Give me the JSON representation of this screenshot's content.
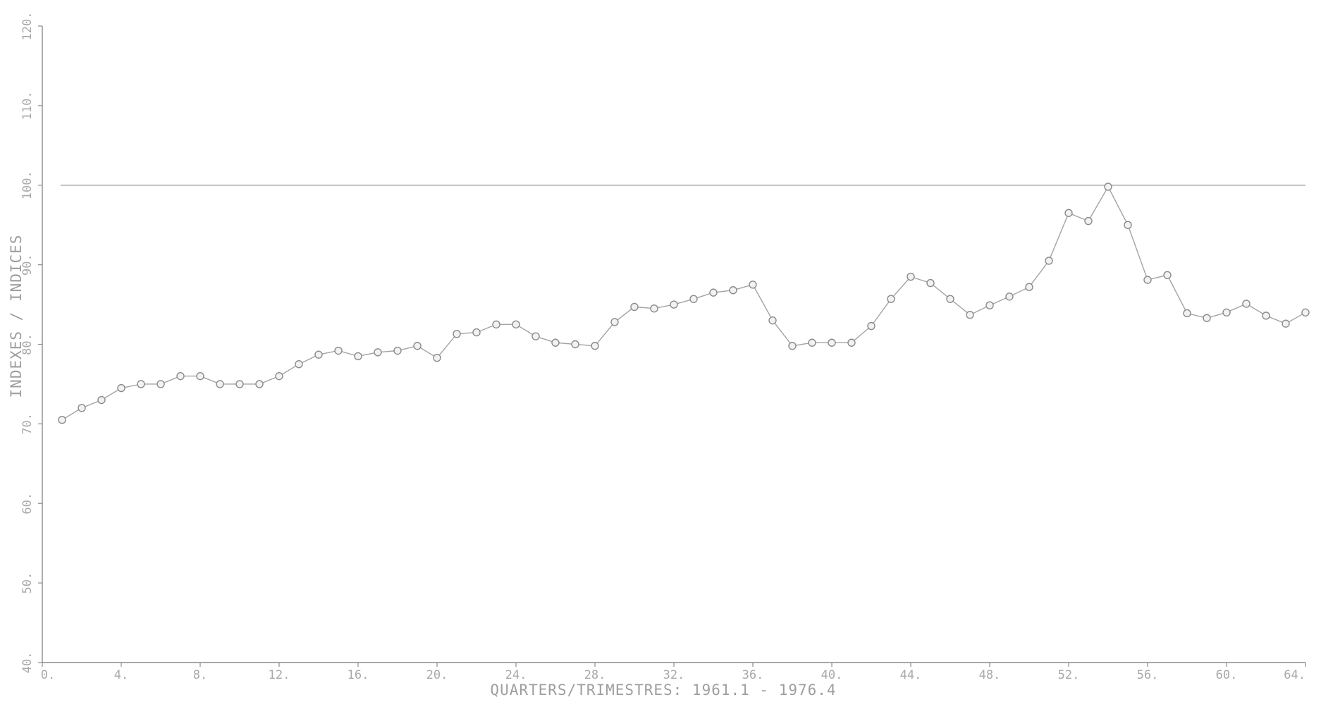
{
  "chart_data": {
    "type": "line",
    "xlabel": "QUARTERS/TRIMESTRES: 1961.1 - 1976.4",
    "ylabel": "INDEXES / INDICES",
    "xlim": [
      0,
      64
    ],
    "ylim": [
      40,
      120
    ],
    "x_ticks": [
      0,
      4,
      8,
      12,
      16,
      20,
      24,
      28,
      32,
      36,
      40,
      44,
      48,
      52,
      56,
      60,
      64
    ],
    "x_tick_labels": [
      "0.",
      "4.",
      "8.",
      "12.",
      "16.",
      "20.",
      "24.",
      "28.",
      "32.",
      "36.",
      "40.",
      "44.",
      "48.",
      "52.",
      "56.",
      "60.",
      "64."
    ],
    "y_ticks": [
      40,
      50,
      60,
      70,
      80,
      90,
      100,
      110,
      120
    ],
    "y_tick_labels": [
      "40.",
      "50.",
      "60.",
      "70.",
      "80.",
      "90.",
      "100.",
      "110.",
      "120."
    ],
    "reference_line": 100,
    "grid": false,
    "series": [
      {
        "x": [
          1,
          2,
          3,
          4,
          5,
          6,
          7,
          8,
          9,
          10,
          11,
          12,
          13,
          14,
          15,
          16,
          17,
          18,
          19,
          20,
          21,
          22,
          23,
          24,
          25,
          26,
          27,
          28,
          29,
          30,
          31,
          32,
          33,
          34,
          35,
          36,
          37,
          38,
          39,
          40,
          41,
          42,
          43,
          44,
          45,
          46,
          47,
          48,
          49,
          50,
          51,
          52,
          53,
          54,
          55,
          56,
          57,
          58,
          59,
          60,
          61,
          62,
          63,
          64
        ],
        "values": [
          70.5,
          72.0,
          73.0,
          74.5,
          75.0,
          75.0,
          76.0,
          76.0,
          75.0,
          75.0,
          75.0,
          76.0,
          77.5,
          78.7,
          79.2,
          78.5,
          79.0,
          79.2,
          79.8,
          78.3,
          81.3,
          81.5,
          82.5,
          82.5,
          81.0,
          80.2,
          80.0,
          79.8,
          82.8,
          84.7,
          84.5,
          85.0,
          85.7,
          86.5,
          86.8,
          87.5,
          83.0,
          79.8,
          80.2,
          80.2,
          80.2,
          82.3,
          85.7,
          88.5,
          87.7,
          85.7,
          83.7,
          84.9,
          86.0,
          87.2,
          90.5,
          96.5,
          95.5,
          99.8,
          95.0,
          88.1,
          88.7,
          83.9,
          83.3,
          84.0,
          85.1,
          83.6,
          82.6,
          84.0
        ]
      }
    ]
  }
}
